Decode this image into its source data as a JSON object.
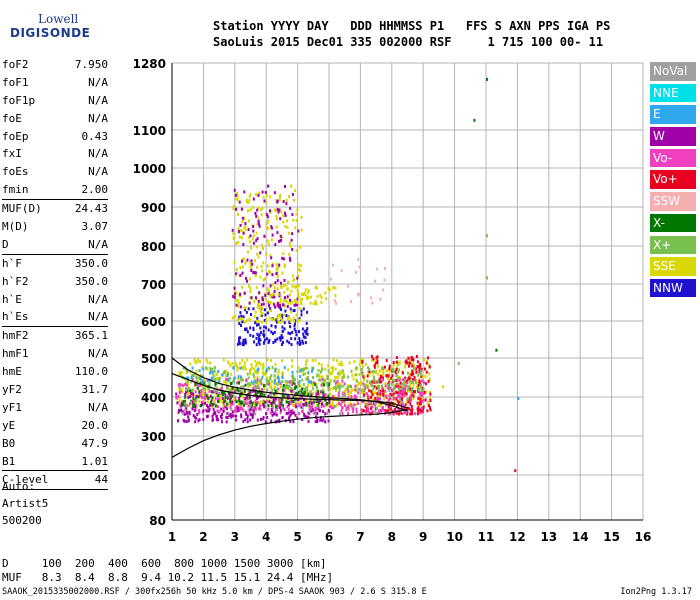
{
  "logo": {
    "line1": "Lowell",
    "line2": "DIGISONDE"
  },
  "header": {
    "labels": "Station YYYY DAY   DDD HHMMSS P1   FFS S AXN PPS IGA PS",
    "values": "SaoLuis 2015 Dec01 335 002000 RSF     1 715 100 00- 11"
  },
  "params": [
    {
      "k": "foF2",
      "v": "7.950"
    },
    {
      "k": "foF1",
      "v": "N/A"
    },
    {
      "k": "foF1p",
      "v": "N/A"
    },
    {
      "k": "foE",
      "v": "N/A"
    },
    {
      "k": "foEp",
      "v": "0.43"
    },
    {
      "k": "fxI",
      "v": "N/A"
    },
    {
      "k": "foEs",
      "v": "N/A"
    },
    {
      "k": "fmin",
      "v": "2.00",
      "sep": true
    },
    {
      "k": "MUF(D)",
      "v": "24.43"
    },
    {
      "k": "M(D)",
      "v": "3.07"
    },
    {
      "k": "D",
      "v": "N/A",
      "sep": true
    },
    {
      "k": "h`F",
      "v": "350.0"
    },
    {
      "k": "h`F2",
      "v": "350.0"
    },
    {
      "k": "h`E",
      "v": "N/A"
    },
    {
      "k": "h`Es",
      "v": "N/A",
      "sep": true
    },
    {
      "k": "hmF2",
      "v": "365.1"
    },
    {
      "k": "hmF1",
      "v": "N/A"
    },
    {
      "k": "hmE",
      "v": "110.0"
    },
    {
      "k": "yF2",
      "v": "31.7"
    },
    {
      "k": "yF1",
      "v": "N/A"
    },
    {
      "k": "yE",
      "v": "20.0"
    },
    {
      "k": "B0",
      "v": "47.9"
    },
    {
      "k": "B1",
      "v": "1.01",
      "sep": true
    },
    {
      "k": "C-level",
      "v": "44",
      "sep": true
    }
  ],
  "auto": {
    "line1": "Auto:",
    "line2": "Artist5",
    "line3": "500200"
  },
  "legend": [
    {
      "label": "NoVal",
      "color": "#a0a0a0"
    },
    {
      "label": "NNE",
      "color": "#00e0e8"
    },
    {
      "label": "E",
      "color": "#30a8f0"
    },
    {
      "label": "W",
      "color": "#a000a8"
    },
    {
      "label": "Vo-",
      "color": "#f040c0"
    },
    {
      "label": "Vo+",
      "color": "#e80020"
    },
    {
      "label": "SSW",
      "color": "#f4b0b0"
    },
    {
      "label": "X-",
      "color": "#007800"
    },
    {
      "label": "X+",
      "color": "#78c050"
    },
    {
      "label": "SSE",
      "color": "#d8d800"
    },
    {
      "label": "NNW",
      "color": "#2010d0"
    }
  ],
  "bottom": {
    "d_row": "D     100  200  400  600  800 1000 1500 3000 [km]",
    "muf_row": "MUF   8.3  8.4  8.8  9.4 10.2 11.5 15.1 24.4 [MHz]"
  },
  "footer": {
    "left": "SAAOK_2015335002000.RSF / 300fx256h 50 kHz 5.0 km / DPS-4 SAAOK 903 / 2.6 S 315.8 E",
    "right": "Ion2Png 1.3.17"
  },
  "chart_data": {
    "type": "scatter",
    "x_ticks": [
      1,
      2,
      3,
      4,
      5,
      6,
      7,
      8,
      9,
      10,
      11,
      12,
      13,
      14,
      15,
      16
    ],
    "y_ticks": [
      80,
      200,
      300,
      400,
      500,
      600,
      700,
      800,
      900,
      1000,
      1100,
      1280
    ],
    "xlim": [
      1,
      16
    ],
    "ylim": [
      80,
      1280
    ],
    "grid": true,
    "clusters": [
      {
        "color": "#d8d800",
        "x": [
          1.2,
          9.2
        ],
        "y": [
          380,
          500
        ],
        "n": 700
      },
      {
        "color": "#e80020",
        "x": [
          7.0,
          9.2
        ],
        "y": [
          360,
          510
        ],
        "n": 260
      },
      {
        "color": "#f040c0",
        "x": [
          1.1,
          9.0
        ],
        "y": [
          360,
          450
        ],
        "n": 380
      },
      {
        "color": "#a000a8",
        "x": [
          1.1,
          6.0
        ],
        "y": [
          340,
          420
        ],
        "n": 260
      },
      {
        "color": "#2010d0",
        "x": [
          3.0,
          5.3
        ],
        "y": [
          540,
          640
        ],
        "n": 160
      },
      {
        "color": "#d8d800",
        "x": [
          2.9,
          5.1
        ],
        "y": [
          600,
          960
        ],
        "n": 260
      },
      {
        "color": "#a000a8",
        "x": [
          2.9,
          5.0
        ],
        "y": [
          640,
          960
        ],
        "n": 140
      },
      {
        "color": "#78c050",
        "x": [
          1.3,
          9.0
        ],
        "y": [
          420,
          480
        ],
        "n": 240
      },
      {
        "color": "#007800",
        "x": [
          1.3,
          6.0
        ],
        "y": [
          380,
          440
        ],
        "n": 120
      },
      {
        "color": "#30a8f0",
        "x": [
          1.4,
          5.5
        ],
        "y": [
          440,
          480
        ],
        "n": 50
      },
      {
        "color": "#a0a0a0",
        "x": [
          1.2,
          8.5
        ],
        "y": [
          360,
          440
        ],
        "n": 70
      },
      {
        "color": "#d8d800",
        "x": [
          4.0,
          6.2
        ],
        "y": [
          650,
          700
        ],
        "n": 60
      },
      {
        "color": "#f4b0b0",
        "x": [
          6.0,
          8.0
        ],
        "y": [
          650,
          780
        ],
        "n": 20
      }
    ],
    "outliers": [
      {
        "x": 11.0,
        "y": 1240,
        "color": "#007800"
      },
      {
        "x": 10.6,
        "y": 1130,
        "color": "#007800"
      },
      {
        "x": 11.3,
        "y": 525,
        "color": "#007800"
      },
      {
        "x": 11.0,
        "y": 830,
        "color": "#78c050"
      },
      {
        "x": 11.0,
        "y": 720,
        "color": "#78c050"
      },
      {
        "x": 11.9,
        "y": 215,
        "color": "#e80020"
      },
      {
        "x": 12.0,
        "y": 400,
        "color": "#30a8f0"
      },
      {
        "x": 10.1,
        "y": 490,
        "color": "#78c050"
      },
      {
        "x": 9.6,
        "y": 430,
        "color": "#d8d800"
      }
    ],
    "profile_curve": {
      "x": [
        1.0,
        1.5,
        2,
        2.5,
        3,
        3.5,
        4,
        4.5,
        5,
        5.5,
        6,
        6.5,
        7,
        7.5,
        8,
        8.5
      ],
      "y": [
        245,
        268,
        288,
        303,
        315,
        325,
        332,
        338,
        343,
        347,
        350,
        352,
        354,
        356,
        360,
        368
      ]
    },
    "trace_curves": [
      {
        "x": [
          1.0,
          1.5,
          2,
          2.5,
          3,
          3.5,
          4,
          4.5,
          5,
          5.5,
          6,
          6.5,
          7,
          7.5,
          8,
          8.5
        ],
        "y": [
          460,
          445,
          430,
          418,
          410,
          404,
          400,
          398,
          396,
          394,
          393,
          392,
          391,
          389,
          384,
          372
        ]
      },
      {
        "x": [
          1.0,
          1.5,
          2,
          2.5,
          3,
          3.5,
          4,
          4.5,
          5,
          5.5,
          6,
          6.5,
          7,
          7.5,
          8,
          8.5
        ],
        "y": [
          500,
          470,
          450,
          435,
          425,
          418,
          412,
          408,
          404,
          401,
          398,
          396,
          393,
          388,
          378,
          364
        ]
      }
    ]
  }
}
